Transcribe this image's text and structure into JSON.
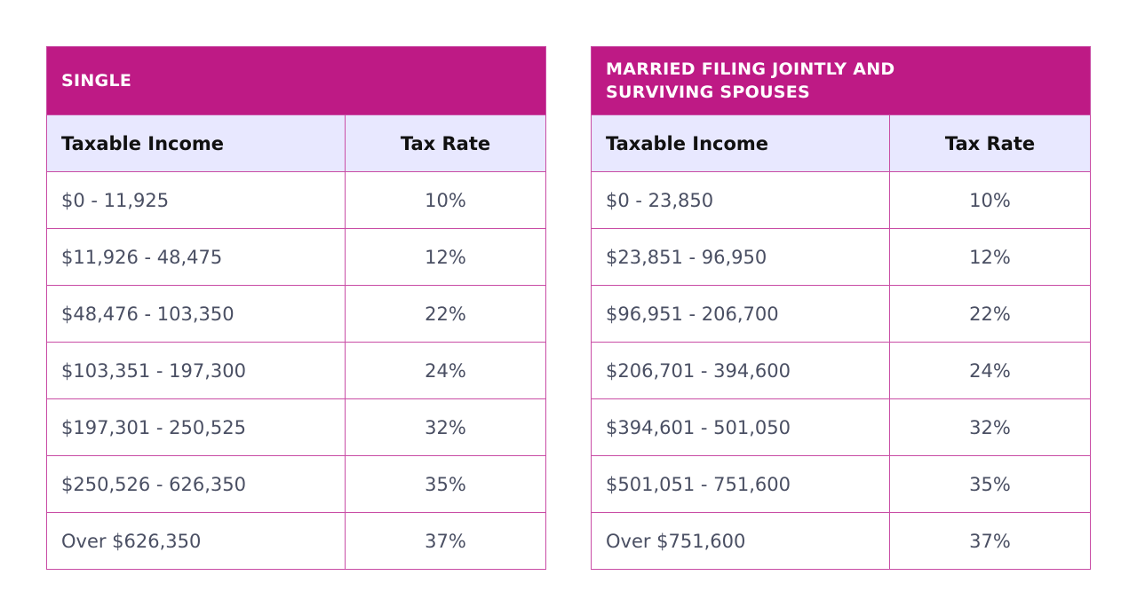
{
  "colors": {
    "title_bg": "#BE1A85",
    "header_bg": "#E8E8FF",
    "border": "#C94DA5",
    "text": "#4A4F63"
  },
  "tables": [
    {
      "title": "SINGLE",
      "headers": [
        "Taxable Income",
        "Tax Rate"
      ],
      "rows": [
        [
          "$0 - 11,925",
          "10%"
        ],
        [
          "$11,926 - 48,475",
          "12%"
        ],
        [
          "$48,476 - 103,350",
          "22%"
        ],
        [
          "$103,351 - 197,300",
          "24%"
        ],
        [
          "$197,301 - 250,525",
          "32%"
        ],
        [
          "$250,526 - 626,350",
          "35%"
        ],
        [
          "Over $626,350",
          "37%"
        ]
      ]
    },
    {
      "title_line1": "MARRIED FILING JOINTLY AND",
      "title_line2": "SURVIVING SPOUSES",
      "headers": [
        "Taxable Income",
        "Tax Rate"
      ],
      "rows": [
        [
          "$0 - 23,850",
          "10%"
        ],
        [
          "$23,851 - 96,950",
          "12%"
        ],
        [
          "$96,951 - 206,700",
          "22%"
        ],
        [
          "$206,701 - 394,600",
          "24%"
        ],
        [
          "$394,601 - 501,050",
          "32%"
        ],
        [
          "$501,051 - 751,600",
          "35%"
        ],
        [
          "Over $751,600",
          "37%"
        ]
      ]
    }
  ]
}
